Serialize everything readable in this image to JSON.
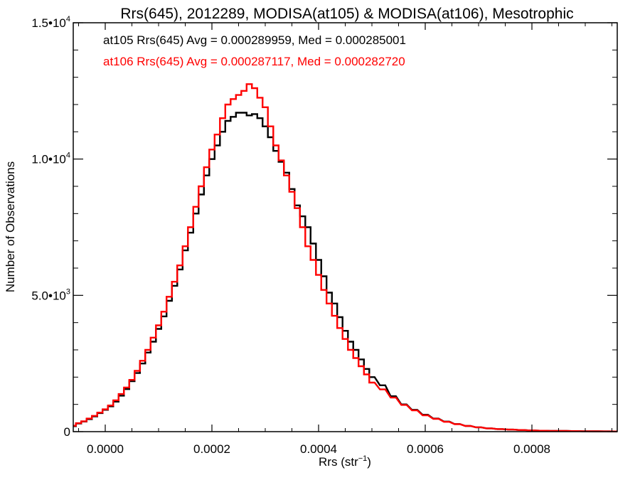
{
  "chart_data": {
    "type": "line",
    "title": "Rrs(645), 2012289, MODISA(at105) & MODISA(at106), Mesotrophic",
    "xlabel": {
      "base": "Rrs (str",
      "sup": "−1",
      "suffix": ")"
    },
    "ylabel": "Number of Observations",
    "xlim": [
      -6e-05,
      0.00096
    ],
    "ylim": [
      0,
      15000
    ],
    "x_ticks": [
      {
        "value": 0.0,
        "label": "0.0000"
      },
      {
        "value": 0.0002,
        "label": "0.0002"
      },
      {
        "value": 0.0004,
        "label": "0.0004"
      },
      {
        "value": 0.0006,
        "label": "0.0006"
      },
      {
        "value": 0.0008,
        "label": "0.0008"
      }
    ],
    "y_ticks": [
      {
        "value": 0,
        "mantissa": "0",
        "exp": ""
      },
      {
        "value": 5000,
        "mantissa": "5.0•1",
        "exp": "3"
      },
      {
        "value": 10000,
        "mantissa": "1.0•1",
        "exp": "4"
      },
      {
        "value": 15000,
        "mantissa": "1.5•1",
        "exp": "4"
      }
    ],
    "legend": [
      {
        "text": "at105 Rrs(645) Avg = 0.000289959, Med = 0.000285001",
        "color": "#000000"
      },
      {
        "text": "at106 Rrs(645) Avg = 0.000287117, Med = 0.000282720",
        "color": "#ff0000"
      }
    ],
    "legend_position": "top-left",
    "step_width": 5e-06,
    "series": [
      {
        "name": "at105",
        "color": "#000000",
        "x": [
          -6e-05,
          -5e-05,
          -4e-05,
          -3e-05,
          -2e-05,
          -1e-05,
          0.0,
          1e-05,
          2e-05,
          3e-05,
          4e-05,
          5e-05,
          6e-05,
          7e-05,
          8e-05,
          9e-05,
          0.0001,
          0.00011,
          0.00012,
          0.00013,
          0.00014,
          0.00015,
          0.00016,
          0.00017,
          0.00018,
          0.00019,
          0.0002,
          0.00021,
          0.00022,
          0.00023,
          0.00024,
          0.00025,
          0.00026,
          0.00027,
          0.00028,
          0.00029,
          0.0003,
          0.00031,
          0.00032,
          0.00033,
          0.00034,
          0.00035,
          0.00036,
          0.00037,
          0.00038,
          0.00039,
          0.0004,
          0.00041,
          0.00042,
          0.00043,
          0.00044,
          0.00045,
          0.00046,
          0.00047,
          0.00048,
          0.00049,
          0.0005,
          0.00052,
          0.00054,
          0.00056,
          0.00058,
          0.0006,
          0.00062,
          0.00064,
          0.00066,
          0.00068,
          0.0007,
          0.00072,
          0.00074,
          0.00076,
          0.00078,
          0.0008,
          0.00082,
          0.00084,
          0.00086,
          0.00088,
          0.0009,
          0.00092,
          0.00094,
          0.00096
        ],
        "y": [
          200,
          300,
          370,
          460,
          560,
          680,
          800,
          930,
          1100,
          1320,
          1560,
          1850,
          2150,
          2500,
          2900,
          3300,
          3770,
          4230,
          4800,
          5350,
          5950,
          6650,
          7300,
          8000,
          8700,
          9400,
          10000,
          10500,
          11000,
          11400,
          11550,
          11700,
          11700,
          11600,
          11650,
          11500,
          11200,
          10800,
          10300,
          9900,
          9500,
          8900,
          8300,
          7900,
          7500,
          6900,
          6300,
          5700,
          5100,
          4700,
          4200,
          3700,
          3300,
          3000,
          2650,
          2300,
          2000,
          1700,
          1300,
          1000,
          800,
          620,
          480,
          370,
          280,
          210,
          160,
          120,
          95,
          75,
          60,
          45,
          35,
          30,
          25,
          20,
          15,
          12,
          10,
          8
        ]
      },
      {
        "name": "at106",
        "color": "#ff0000",
        "x": [
          -6e-05,
          -5e-05,
          -4e-05,
          -3e-05,
          -2e-05,
          -1e-05,
          0.0,
          1e-05,
          2e-05,
          3e-05,
          4e-05,
          5e-05,
          6e-05,
          7e-05,
          8e-05,
          9e-05,
          0.0001,
          0.00011,
          0.00012,
          0.00013,
          0.00014,
          0.00015,
          0.00016,
          0.00017,
          0.00018,
          0.00019,
          0.0002,
          0.00021,
          0.00022,
          0.00023,
          0.00024,
          0.00025,
          0.00026,
          0.00027,
          0.00028,
          0.00029,
          0.0003,
          0.00031,
          0.00032,
          0.00033,
          0.00034,
          0.00035,
          0.00036,
          0.00037,
          0.00038,
          0.00039,
          0.0004,
          0.00041,
          0.00042,
          0.00043,
          0.00044,
          0.00045,
          0.00046,
          0.00047,
          0.00048,
          0.00049,
          0.0005,
          0.00052,
          0.00054,
          0.00056,
          0.00058,
          0.0006,
          0.00062,
          0.00064,
          0.00066,
          0.00068,
          0.0007,
          0.00072,
          0.00074,
          0.00076,
          0.00078,
          0.0008,
          0.00082,
          0.00084,
          0.00086,
          0.00088,
          0.0009,
          0.00092,
          0.00094,
          0.00096
        ],
        "y": [
          220,
          310,
          380,
          480,
          580,
          700,
          820,
          960,
          1150,
          1380,
          1620,
          1900,
          2230,
          2600,
          3000,
          3450,
          3900,
          4400,
          4950,
          5500,
          6100,
          6800,
          7500,
          8250,
          9000,
          9700,
          10350,
          10900,
          11500,
          12000,
          12200,
          12350,
          12500,
          12750,
          12600,
          12250,
          11900,
          11200,
          10500,
          9950,
          9400,
          8800,
          8200,
          7500,
          6800,
          6300,
          5750,
          5200,
          4700,
          4250,
          3800,
          3400,
          3000,
          2700,
          2400,
          2100,
          1800,
          1550,
          1250,
          980,
          780,
          600,
          470,
          360,
          275,
          210,
          160,
          120,
          95,
          75,
          60,
          45,
          35,
          30,
          25,
          20,
          15,
          12,
          10,
          8
        ]
      }
    ]
  }
}
